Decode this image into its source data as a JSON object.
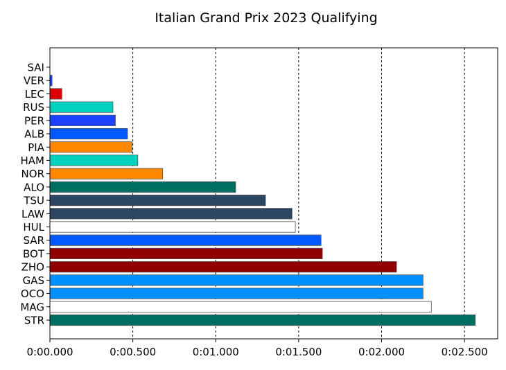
{
  "chart_data": {
    "type": "bar",
    "orientation": "horizontal",
    "title": "Italian Grand Prix 2023 Qualifying",
    "xlabel": "",
    "ylabel": "",
    "xlim": [
      0,
      2.7
    ],
    "grid": "vertical dashed",
    "x_ticks": [
      {
        "value": 0,
        "label": "0:00.000"
      },
      {
        "value": 0.5,
        "label": "0:00.500"
      },
      {
        "value": 1.0,
        "label": "0:01.000"
      },
      {
        "value": 1.5,
        "label": "0:01.500"
      },
      {
        "value": 2.0,
        "label": "0:02.000"
      },
      {
        "value": 2.5,
        "label": "0:02.500"
      }
    ],
    "categories": [
      "SAI",
      "VER",
      "LEC",
      "RUS",
      "PER",
      "ALB",
      "PIA",
      "HAM",
      "NOR",
      "ALO",
      "TSU",
      "LAW",
      "HUL",
      "SAR",
      "BOT",
      "ZHO",
      "GAS",
      "OCO",
      "MAG",
      "STR"
    ],
    "values": [
      0.0,
      0.013,
      0.072,
      0.38,
      0.395,
      0.468,
      0.495,
      0.53,
      0.68,
      1.12,
      1.3,
      1.46,
      1.48,
      1.635,
      1.643,
      2.09,
      2.25,
      2.25,
      2.3,
      2.565
    ],
    "colors": [
      "#dc0000",
      "#1e41ff",
      "#dc0000",
      "#00d2be",
      "#1e41ff",
      "#005aff",
      "#ff8700",
      "#00d2be",
      "#ff8700",
      "#006f62",
      "#2b4562",
      "#2b4562",
      "#ffffff",
      "#005aff",
      "#900000",
      "#900000",
      "#0090ff",
      "#0090ff",
      "#ffffff",
      "#006f62"
    ]
  }
}
